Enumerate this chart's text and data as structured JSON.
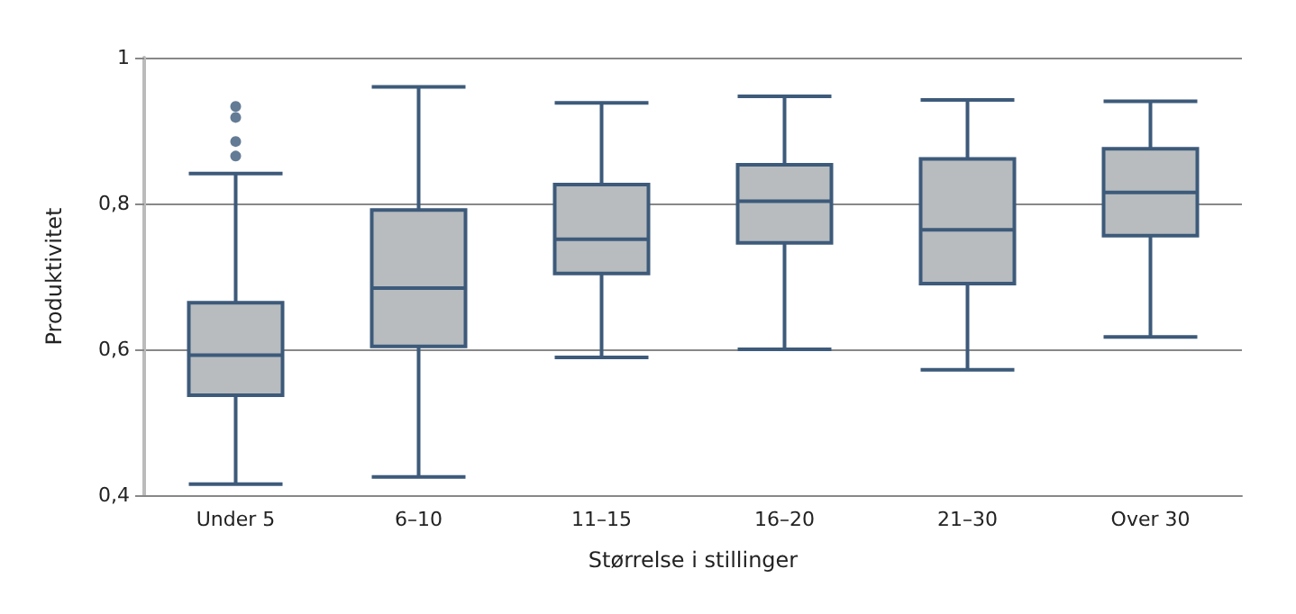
{
  "chart_data": {
    "type": "box",
    "xlabel": "Størrelse i stillinger",
    "ylabel": "Produktivitet",
    "categories": [
      "Under 5",
      "6–10",
      "11–15",
      "16–20",
      "21–30",
      "Over 30"
    ],
    "series": [
      {
        "color": "#b8bcbf",
        "boxes": [
          {
            "low": 0.415,
            "q1": 0.537,
            "median": 0.592,
            "q3": 0.664,
            "high": 0.841,
            "outliers": [
              0.933,
              0.918,
              0.885,
              0.865
            ]
          },
          {
            "low": 0.425,
            "q1": 0.604,
            "median": 0.684,
            "q3": 0.791,
            "high": 0.96
          },
          {
            "low": 0.589,
            "q1": 0.704,
            "median": 0.751,
            "q3": 0.826,
            "high": 0.938
          },
          {
            "low": 0.6,
            "q1": 0.746,
            "median": 0.803,
            "q3": 0.853,
            "high": 0.947
          },
          {
            "low": 0.572,
            "q1": 0.69,
            "median": 0.764,
            "q3": 0.861,
            "high": 0.942
          },
          {
            "low": 0.617,
            "q1": 0.756,
            "median": 0.815,
            "q3": 0.875,
            "high": 0.94
          }
        ]
      }
    ],
    "ylim": [
      0.4,
      1
    ],
    "yticks": [
      {
        "value": 0.4,
        "label": "0,4"
      },
      {
        "value": 0.6,
        "label": "0,6"
      },
      {
        "value": 0.8,
        "label": "0,8"
      },
      {
        "value": 1,
        "label": "1"
      }
    ],
    "grid": "y"
  }
}
